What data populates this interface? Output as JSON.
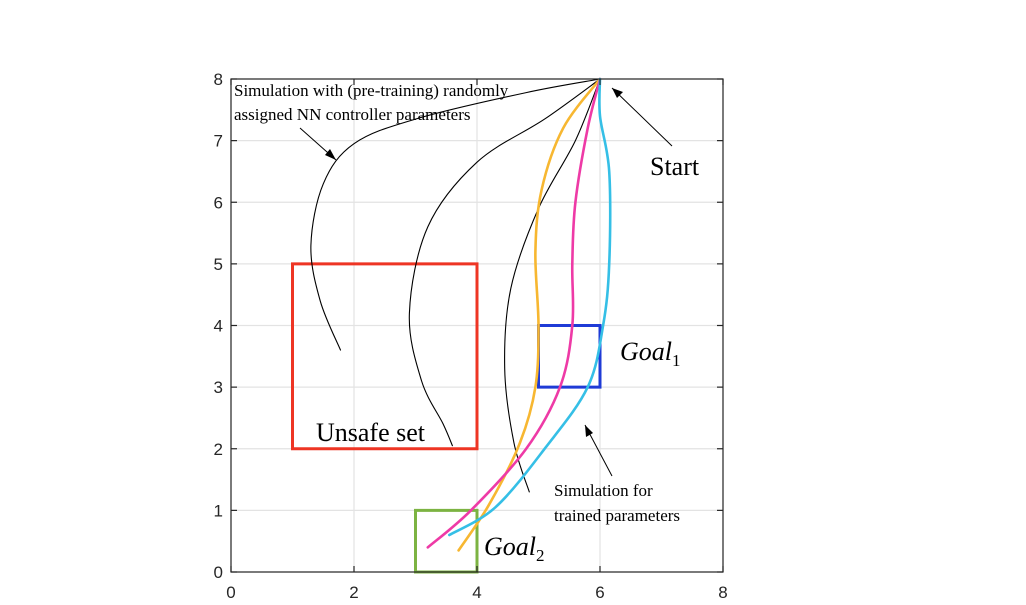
{
  "chart_data": {
    "type": "line",
    "xlim": [
      0,
      8
    ],
    "ylim": [
      0,
      8
    ],
    "xticks": [
      "0",
      "2",
      "4",
      "6",
      "8"
    ],
    "yticks": [
      "0",
      "1",
      "2",
      "3",
      "4",
      "5",
      "6",
      "7",
      "8"
    ],
    "grid": true,
    "regions": [
      {
        "name": "Unsafe set",
        "x": [
          1,
          4
        ],
        "y": [
          2,
          5
        ],
        "color": "#ee3524"
      },
      {
        "name": "Goal",
        "subscript": "1",
        "x": [
          5,
          6
        ],
        "y": [
          3,
          4
        ],
        "color": "#1f3bd6"
      },
      {
        "name": "Goal",
        "subscript": "2",
        "x": [
          3,
          4
        ],
        "y": [
          0,
          1
        ],
        "color": "#7cb342"
      }
    ],
    "series": [
      {
        "group": "pre-training",
        "color": "#000000",
        "points": [
          [
            6,
            8
          ],
          [
            4.8,
            7.78
          ],
          [
            3,
            7.35
          ],
          [
            2,
            6.95
          ],
          [
            1.5,
            6.3
          ],
          [
            1.3,
            5.3
          ],
          [
            1.45,
            4.4
          ],
          [
            1.78,
            3.6
          ]
        ]
      },
      {
        "group": "pre-training",
        "color": "#000000",
        "points": [
          [
            6,
            8
          ],
          [
            5.1,
            7.35
          ],
          [
            4,
            6.65
          ],
          [
            3.2,
            5.6
          ],
          [
            2.9,
            4.2
          ],
          [
            3.1,
            3.1
          ],
          [
            3.45,
            2.4
          ],
          [
            3.6,
            2.05
          ]
        ]
      },
      {
        "group": "pre-training",
        "color": "#000000",
        "points": [
          [
            6,
            8
          ],
          [
            5.6,
            7.0
          ],
          [
            5.0,
            5.9
          ],
          [
            4.55,
            4.6
          ],
          [
            4.45,
            3.3
          ],
          [
            4.6,
            2.1
          ],
          [
            4.85,
            1.3
          ]
        ]
      },
      {
        "group": "trained",
        "color": "#f7b731",
        "points": [
          [
            6,
            8
          ],
          [
            5.4,
            7.2
          ],
          [
            5.05,
            6.2
          ],
          [
            4.95,
            5.2
          ],
          [
            5.0,
            4.0
          ],
          [
            4.95,
            3.0
          ],
          [
            4.7,
            2.1
          ],
          [
            4.2,
            1.1
          ],
          [
            3.7,
            0.35
          ]
        ]
      },
      {
        "group": "trained",
        "color": "#ee3aa6",
        "points": [
          [
            6,
            8
          ],
          [
            5.8,
            7.2
          ],
          [
            5.6,
            6.0
          ],
          [
            5.55,
            5.0
          ],
          [
            5.55,
            4.0
          ],
          [
            5.35,
            3.0
          ],
          [
            4.8,
            2.0
          ],
          [
            3.9,
            1.0
          ],
          [
            3.2,
            0.4
          ]
        ]
      },
      {
        "group": "trained",
        "color": "#35bfe6",
        "points": [
          [
            6,
            8
          ],
          [
            6.0,
            7.4
          ],
          [
            6.15,
            6.5
          ],
          [
            6.15,
            5.0
          ],
          [
            6.05,
            4.0
          ],
          [
            5.8,
            3.0
          ],
          [
            5.1,
            2.0
          ],
          [
            4.3,
            1.05
          ],
          [
            3.55,
            0.6
          ]
        ]
      }
    ],
    "annotations": {
      "pretrain_line1": "Simulation with (pre-training) randomly",
      "pretrain_line2": "assigned NN controller parameters",
      "start": "Start",
      "trained_line1": "Simulation for",
      "trained_line2": "trained parameters"
    }
  }
}
